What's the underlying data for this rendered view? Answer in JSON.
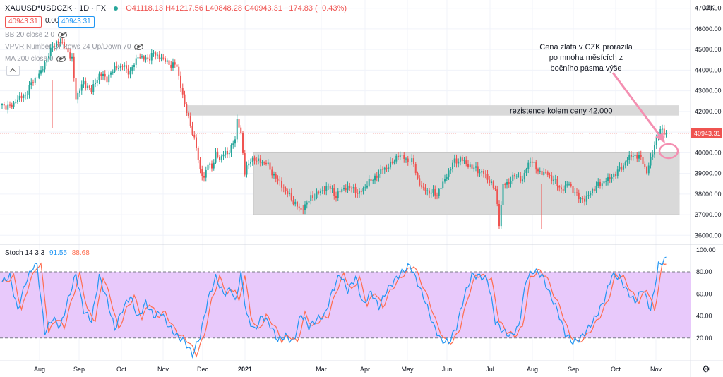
{
  "header": {
    "symbol": "XAUUSD*USDCZK",
    "interval": "1D",
    "source": "FX",
    "open": "O41118.13",
    "high": "H41217.56",
    "low": "L40848.28",
    "close": "C40943.31",
    "change": "−174.83 (−0.43%)",
    "price_box_red": "40943.31",
    "price_zero": "0.00",
    "price_box_blue": "40943.31"
  },
  "indicators": {
    "bb": "BB 20 close 2 0",
    "vpvr": "VPVR Number Of Rows 24 Up/Down 70",
    "ma": "MA 200 close 0"
  },
  "stoch": {
    "label": "Stoch 14 3 3",
    "k_value": "91.55",
    "d_value": "88.68"
  },
  "colors": {
    "up": "#26a69a",
    "down": "#ef5350",
    "k_line": "#2196f3",
    "d_line": "#ff6d4f",
    "band_fill": "#e8c9fb",
    "zone_fill": "#d9d9d9",
    "annotation": "#f48fb1"
  },
  "chart_data": {
    "type": "candlestick",
    "currency": "CZK",
    "y_ticks": [
      "47000.00",
      "46000.00",
      "45000.00",
      "44000.00",
      "43000.00",
      "42000.00",
      "41000.00",
      "40000.00",
      "39000.00",
      "38000.00",
      "37000.00",
      "36000.00"
    ],
    "ylim": [
      35600,
      47400
    ],
    "last_price_label": "40943.31",
    "x_ticks": [
      "Aug",
      "Sep",
      "Oct",
      "Nov",
      "Dec",
      "2021",
      "Mar",
      "Apr",
      "May",
      "Jun",
      "Jul",
      "Aug",
      "Sep",
      "Oct",
      "Nov"
    ],
    "price_path": [
      [
        0,
        42300
      ],
      [
        4,
        42200
      ],
      [
        8,
        42600
      ],
      [
        12,
        42800
      ],
      [
        16,
        43500
      ],
      [
        20,
        43900
      ],
      [
        24,
        44800
      ],
      [
        28,
        45400
      ],
      [
        32,
        45200
      ],
      [
        36,
        44500
      ],
      [
        38,
        42700
      ],
      [
        42,
        43400
      ],
      [
        46,
        43000
      ],
      [
        50,
        43800
      ],
      [
        54,
        43600
      ],
      [
        58,
        44100
      ],
      [
        62,
        44200
      ],
      [
        66,
        43900
      ],
      [
        70,
        44700
      ],
      [
        74,
        44500
      ],
      [
        78,
        44800
      ],
      [
        82,
        44600
      ],
      [
        86,
        44300
      ],
      [
        90,
        44200
      ],
      [
        94,
        42300
      ],
      [
        96,
        41700
      ],
      [
        98,
        41000
      ],
      [
        100,
        40200
      ],
      [
        102,
        39200
      ],
      [
        104,
        38700
      ],
      [
        106,
        39500
      ],
      [
        108,
        39300
      ],
      [
        110,
        39900
      ],
      [
        112,
        39700
      ],
      [
        114,
        40000
      ],
      [
        116,
        39900
      ],
      [
        118,
        40300
      ],
      [
        120,
        40700
      ],
      [
        121,
        41500
      ],
      [
        123,
        41000
      ],
      [
        125,
        39000
      ],
      [
        128,
        39700
      ],
      [
        132,
        39600
      ],
      [
        136,
        39500
      ],
      [
        140,
        38900
      ],
      [
        144,
        38400
      ],
      [
        148,
        37900
      ],
      [
        152,
        37400
      ],
      [
        154,
        37200
      ],
      [
        157,
        37600
      ],
      [
        160,
        37900
      ],
      [
        164,
        38100
      ],
      [
        168,
        38400
      ],
      [
        172,
        37900
      ],
      [
        176,
        38300
      ],
      [
        180,
        38300
      ],
      [
        184,
        38000
      ],
      [
        188,
        38500
      ],
      [
        192,
        38800
      ],
      [
        196,
        39200
      ],
      [
        200,
        39400
      ],
      [
        204,
        39900
      ],
      [
        208,
        39700
      ],
      [
        212,
        39500
      ],
      [
        214,
        38700
      ],
      [
        216,
        38300
      ],
      [
        220,
        38100
      ],
      [
        224,
        38000
      ],
      [
        228,
        38700
      ],
      [
        232,
        39500
      ],
      [
        236,
        39700
      ],
      [
        240,
        39400
      ],
      [
        244,
        39200
      ],
      [
        248,
        39000
      ],
      [
        252,
        38500
      ],
      [
        254,
        38200
      ],
      [
        256,
        36600
      ],
      [
        258,
        38400
      ],
      [
        260,
        38500
      ],
      [
        264,
        38900
      ],
      [
        268,
        38700
      ],
      [
        272,
        39700
      ],
      [
        276,
        39100
      ],
      [
        280,
        39000
      ],
      [
        284,
        38700
      ],
      [
        288,
        38200
      ],
      [
        292,
        38500
      ],
      [
        296,
        37900
      ],
      [
        300,
        37700
      ],
      [
        304,
        38200
      ],
      [
        308,
        38500
      ],
      [
        312,
        38700
      ],
      [
        316,
        39000
      ],
      [
        320,
        39400
      ],
      [
        324,
        39900
      ],
      [
        328,
        39800
      ],
      [
        330,
        39600
      ],
      [
        332,
        39000
      ],
      [
        334,
        39700
      ],
      [
        336,
        40400
      ],
      [
        338,
        41000
      ],
      [
        340,
        41100
      ],
      [
        342,
        40943
      ]
    ],
    "stoch_path": [
      [
        0,
        71
      ],
      [
        4,
        76
      ],
      [
        8,
        45
      ],
      [
        12,
        70
      ],
      [
        16,
        85
      ],
      [
        18,
        86
      ],
      [
        20,
        55
      ],
      [
        22,
        25
      ],
      [
        26,
        38
      ],
      [
        30,
        30
      ],
      [
        34,
        55
      ],
      [
        38,
        78
      ],
      [
        42,
        45
      ],
      [
        46,
        36
      ],
      [
        50,
        76
      ],
      [
        54,
        55
      ],
      [
        58,
        28
      ],
      [
        62,
        46
      ],
      [
        66,
        58
      ],
      [
        70,
        38
      ],
      [
        74,
        52
      ],
      [
        78,
        40
      ],
      [
        82,
        43
      ],
      [
        86,
        30
      ],
      [
        90,
        22
      ],
      [
        94,
        17
      ],
      [
        98,
        5
      ],
      [
        102,
        22
      ],
      [
        106,
        55
      ],
      [
        110,
        75
      ],
      [
        114,
        60
      ],
      [
        118,
        65
      ],
      [
        120,
        52
      ],
      [
        123,
        78
      ],
      [
        126,
        40
      ],
      [
        130,
        27
      ],
      [
        134,
        40
      ],
      [
        138,
        32
      ],
      [
        142,
        18
      ],
      [
        146,
        22
      ],
      [
        150,
        16
      ],
      [
        154,
        42
      ],
      [
        158,
        30
      ],
      [
        162,
        37
      ],
      [
        166,
        40
      ],
      [
        170,
        62
      ],
      [
        174,
        78
      ],
      [
        178,
        63
      ],
      [
        182,
        75
      ],
      [
        186,
        50
      ],
      [
        190,
        62
      ],
      [
        194,
        48
      ],
      [
        198,
        63
      ],
      [
        202,
        72
      ],
      [
        206,
        80
      ],
      [
        210,
        86
      ],
      [
        214,
        70
      ],
      [
        218,
        53
      ],
      [
        222,
        32
      ],
      [
        226,
        18
      ],
      [
        230,
        16
      ],
      [
        234,
        30
      ],
      [
        238,
        58
      ],
      [
        242,
        77
      ],
      [
        246,
        76
      ],
      [
        250,
        73
      ],
      [
        252,
        55
      ],
      [
        254,
        35
      ],
      [
        258,
        26
      ],
      [
        262,
        22
      ],
      [
        266,
        30
      ],
      [
        270,
        74
      ],
      [
        274,
        81
      ],
      [
        278,
        77
      ],
      [
        282,
        60
      ],
      [
        286,
        45
      ],
      [
        290,
        24
      ],
      [
        294,
        16
      ],
      [
        298,
        20
      ],
      [
        302,
        29
      ],
      [
        306,
        40
      ],
      [
        310,
        54
      ],
      [
        314,
        77
      ],
      [
        318,
        75
      ],
      [
        322,
        62
      ],
      [
        326,
        53
      ],
      [
        330,
        65
      ],
      [
        334,
        45
      ],
      [
        338,
        86
      ],
      [
        342,
        92
      ]
    ],
    "stoch_ticks": [
      "100.00",
      "80.00",
      "60.00",
      "40.00",
      "20.00"
    ],
    "stoch_band": [
      20,
      80
    ],
    "resistance_zone": [
      41800,
      42300
    ],
    "range_zone": [
      37000,
      40000
    ],
    "annotations": {
      "resistance": "rezistence  kolem ceny 42.000",
      "callout": [
        "Cena zlata v CZK prorazila",
        "po mnoha měsících z",
        "bočního pásma výše"
      ]
    }
  }
}
